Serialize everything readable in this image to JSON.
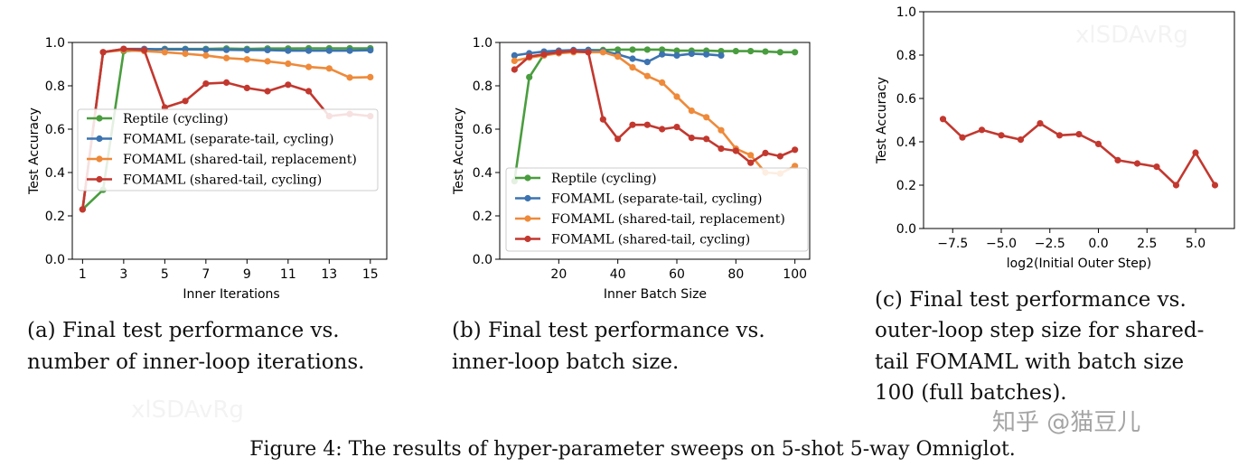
{
  "colors": {
    "green": "#4a9d3f",
    "blue": "#3c73b0",
    "orange": "#ee8a3a",
    "red": "#c2382f"
  },
  "chart_data": [
    {
      "type": "line",
      "xlabel": "Inner Iterations",
      "ylabel": "Test Accuracy",
      "xlim": [
        0.5,
        15.8
      ],
      "ylim": [
        0.0,
        1.0
      ],
      "xticks": [
        "1",
        "3",
        "5",
        "7",
        "9",
        "11",
        "13",
        "15"
      ],
      "yticks": [
        "0.0",
        "0.2",
        "0.4",
        "0.6",
        "0.8",
        "1.0"
      ],
      "legend_position": "center-left",
      "series": [
        {
          "name": "Reptile (cycling)",
          "color": "green",
          "x": [
            1,
            2,
            3,
            4,
            5,
            6,
            7,
            8,
            9,
            10,
            11,
            12,
            13,
            14,
            15
          ],
          "y": [
            0.23,
            0.32,
            0.96,
            0.965,
            0.97,
            0.97,
            0.97,
            0.972,
            0.97,
            0.972,
            0.972,
            0.973,
            0.973,
            0.973,
            0.973
          ]
        },
        {
          "name": "FOMAML (separate-tail, cycling)",
          "color": "blue",
          "x": [
            1,
            2,
            3,
            4,
            5,
            6,
            7,
            8,
            9,
            10,
            11,
            12,
            13,
            14,
            15
          ],
          "y": [
            0.23,
            0.955,
            0.97,
            0.97,
            0.968,
            0.968,
            0.967,
            0.966,
            0.965,
            0.965,
            0.962,
            0.962,
            0.962,
            0.962,
            0.964
          ]
        },
        {
          "name": "FOMAML (shared-tail, replacement)",
          "color": "orange",
          "x": [
            1,
            2,
            3,
            4,
            5,
            6,
            7,
            8,
            9,
            10,
            11,
            12,
            13,
            14,
            15
          ],
          "y": [
            0.23,
            0.955,
            0.965,
            0.96,
            0.955,
            0.948,
            0.94,
            0.928,
            0.922,
            0.913,
            0.902,
            0.887,
            0.88,
            0.838,
            0.84
          ]
        },
        {
          "name": "FOMAML (shared-tail, cycling)",
          "color": "red",
          "x": [
            1,
            2,
            3,
            4,
            5,
            6,
            7,
            8,
            9,
            10,
            11,
            12,
            13,
            14,
            15
          ],
          "y": [
            0.23,
            0.955,
            0.97,
            0.965,
            0.7,
            0.73,
            0.81,
            0.815,
            0.79,
            0.775,
            0.805,
            0.775,
            0.66,
            0.67,
            0.66
          ]
        }
      ],
      "caption": [
        "(a) Final test performance vs.",
        "number of inner-loop iterations."
      ]
    },
    {
      "type": "line",
      "xlabel": "Inner Batch Size",
      "ylabel": "Test Accuracy",
      "xlim": [
        0,
        105
      ],
      "ylim": [
        0.0,
        1.0
      ],
      "xticks": [
        "20",
        "40",
        "60",
        "80",
        "100"
      ],
      "yticks": [
        "0.0",
        "0.2",
        "0.4",
        "0.6",
        "0.8",
        "1.0"
      ],
      "legend_position": "lower-left",
      "series": [
        {
          "name": "Reptile (cycling)",
          "color": "green",
          "x": [
            5,
            10,
            15,
            20,
            25,
            30,
            35,
            40,
            45,
            50,
            55,
            60,
            65,
            70,
            75,
            80,
            85,
            90,
            95,
            100
          ],
          "y": [
            0.36,
            0.84,
            0.945,
            0.96,
            0.962,
            0.965,
            0.965,
            0.967,
            0.967,
            0.967,
            0.967,
            0.962,
            0.962,
            0.962,
            0.96,
            0.96,
            0.96,
            0.958,
            0.955,
            0.955
          ]
        },
        {
          "name": "FOMAML (separate-tail, cycling)",
          "color": "blue",
          "x": [
            5,
            10,
            15,
            20,
            25,
            30,
            35,
            40,
            45,
            50,
            55,
            60,
            65,
            70,
            75
          ],
          "y": [
            0.94,
            0.95,
            0.958,
            0.962,
            0.965,
            0.965,
            0.96,
            0.945,
            0.925,
            0.91,
            0.945,
            0.94,
            0.948,
            0.945,
            0.94
          ]
        },
        {
          "name": "FOMAML (shared-tail, replacement)",
          "color": "orange",
          "x": [
            5,
            10,
            15,
            20,
            25,
            30,
            35,
            40,
            45,
            50,
            55,
            60,
            65,
            70,
            75,
            80,
            85,
            90,
            95,
            100
          ],
          "y": [
            0.915,
            0.93,
            0.94,
            0.95,
            0.955,
            0.955,
            0.955,
            0.935,
            0.885,
            0.845,
            0.815,
            0.75,
            0.685,
            0.655,
            0.595,
            0.51,
            0.48,
            0.4,
            0.395,
            0.43
          ]
        },
        {
          "name": "FOMAML (shared-tail, cycling)",
          "color": "red",
          "x": [
            5,
            10,
            15,
            20,
            25,
            30,
            35,
            40,
            45,
            50,
            55,
            60,
            65,
            70,
            75,
            80,
            85,
            90,
            95,
            100
          ],
          "y": [
            0.875,
            0.935,
            0.945,
            0.955,
            0.96,
            0.955,
            0.645,
            0.555,
            0.62,
            0.62,
            0.6,
            0.61,
            0.56,
            0.555,
            0.51,
            0.5,
            0.445,
            0.49,
            0.475,
            0.505
          ]
        }
      ],
      "caption": [
        "(b) Final test performance vs.",
        "inner-loop batch size."
      ]
    },
    {
      "type": "line",
      "xlabel": "log2(Initial Outer Step)",
      "ylabel": "Test Accuracy",
      "xlim": [
        -9,
        7
      ],
      "ylim": [
        0.0,
        1.0
      ],
      "xticks": [
        "−7.5",
        "−5.0",
        "−2.5",
        "0.0",
        "2.5",
        "5.0"
      ],
      "yticks": [
        "0.0",
        "0.2",
        "0.4",
        "0.6",
        "0.8",
        "1.0"
      ],
      "series": [
        {
          "name": "",
          "color": "red",
          "x": [
            -8,
            -7,
            -6,
            -5,
            -4,
            -3,
            -2,
            -1,
            0,
            1,
            2,
            3,
            4,
            5,
            6
          ],
          "y": [
            0.505,
            0.42,
            0.455,
            0.43,
            0.41,
            0.485,
            0.43,
            0.435,
            0.39,
            0.315,
            0.3,
            0.285,
            0.2,
            0.35,
            0.2
          ]
        }
      ],
      "caption": [
        "(c)  Final  test  performance  vs.",
        "outer-loop step size for shared-",
        "tail  FOMAML  with  batch  size",
        "100 (full batches)."
      ]
    }
  ],
  "figure_caption": "Figure 4: The results of hyper-parameter sweeps on 5-shot 5-way Omniglot.",
  "watermarks": {
    "zhihu": "知乎 @猫豆儿",
    "faint1": "xlSDAvRg",
    "faint2": "xlSDAvRg"
  }
}
